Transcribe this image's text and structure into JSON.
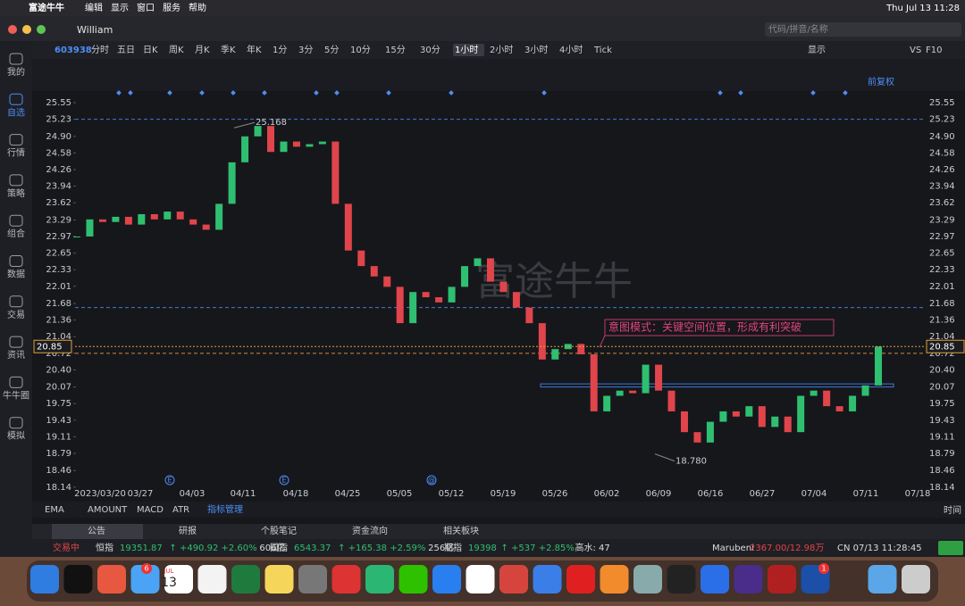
{
  "menubar": {
    "app": "富途牛牛",
    "items": [
      "编辑",
      "显示",
      "窗口",
      "服务",
      "帮助"
    ],
    "clock": "Thu Jul 13  11:28"
  },
  "window": {
    "user": "William",
    "search": "代码/拼音/名称"
  },
  "toolbar": {
    "code": "603938",
    "periods": [
      "分时",
      "五日",
      "日K",
      "周K",
      "月K",
      "季K",
      "年K",
      "1分",
      "3分",
      "5分",
      "10分",
      "15分",
      "30分",
      "1小时",
      "2小时",
      "3小时",
      "4小时",
      "Tick"
    ],
    "selected": 13,
    "right": [
      "显示",
      "VS",
      "F10"
    ],
    "adjust": "前复权"
  },
  "sidebar": [
    "我的",
    "自选",
    "行情",
    "策略",
    "组合",
    "数据",
    "交易",
    "资讯",
    "牛牛圈",
    "模拟"
  ],
  "chart": {
    "watermark": "富途牛牛",
    "yticks": [
      {
        "value": 25.55,
        "label": "25.55"
      },
      {
        "value": 25.23,
        "label": "25.23"
      },
      {
        "value": 24.9,
        "label": "24.90"
      },
      {
        "value": 24.58,
        "label": "24.58"
      },
      {
        "value": 24.26,
        "label": "24.26"
      },
      {
        "value": 23.94,
        "label": "23.94"
      },
      {
        "value": 23.62,
        "label": "23.62"
      },
      {
        "value": 23.29,
        "label": "23.29"
      },
      {
        "value": 22.97,
        "label": "22.97"
      },
      {
        "value": 22.65,
        "label": "22.65"
      },
      {
        "value": 22.33,
        "label": "22.33"
      },
      {
        "value": 22.01,
        "label": "22.01"
      },
      {
        "value": 21.68,
        "label": "21.68"
      },
      {
        "value": 21.36,
        "label": "21.36"
      },
      {
        "value": 21.04,
        "label": "21.04"
      },
      {
        "value": 20.72,
        "label": "20.72"
      },
      {
        "value": 20.4,
        "label": "20.40"
      },
      {
        "value": 20.07,
        "label": "20.07"
      },
      {
        "value": 19.75,
        "label": "19.75"
      },
      {
        "value": 19.43,
        "label": "19.43"
      },
      {
        "value": 19.11,
        "label": "19.11"
      },
      {
        "value": 18.79,
        "label": "18.79"
      },
      {
        "value": 18.46,
        "label": "18.46"
      },
      {
        "value": 18.14,
        "label": "18.14"
      }
    ],
    "dates": [
      "2023/03/20",
      "03/27",
      "04/03",
      "04/11",
      "04/18",
      "04/25",
      "05/05",
      "05/12",
      "05/19",
      "05/26",
      "06/02",
      "06/09",
      "06/16",
      "06/27",
      "07/04",
      "07/11",
      "07/18"
    ],
    "closes": [
      22.97,
      23.3,
      23.25,
      23.35,
      23.2,
      23.4,
      23.3,
      23.45,
      23.3,
      23.2,
      23.1,
      23.6,
      24.4,
      24.9,
      25.1,
      24.6,
      24.8,
      24.7,
      24.75,
      24.8,
      23.6,
      22.7,
      22.4,
      22.2,
      22.0,
      21.3,
      21.9,
      21.8,
      21.7,
      22.0,
      22.4,
      22.55,
      22.1,
      21.9,
      21.6,
      21.3,
      20.6,
      20.8,
      20.9,
      20.7,
      19.6,
      19.9,
      20.0,
      19.95,
      20.5,
      20.0,
      19.6,
      19.2,
      19.0,
      19.4,
      19.6,
      19.5,
      19.7,
      19.3,
      19.5,
      19.2,
      19.9,
      20.0,
      19.7,
      19.6,
      19.9,
      20.1,
      20.85
    ],
    "high": {
      "value": 25.168,
      "label": "25.168"
    },
    "low": {
      "value": 18.78,
      "label": "18.780"
    },
    "last": {
      "value": 20.85,
      "label": "20.85"
    },
    "levels": [
      25.23,
      21.6,
      20.72
    ],
    "box": [
      20.07,
      20.13
    ],
    "note": "意图模式：关键空间位置，形成有利突破",
    "events": [
      "E",
      "E",
      "@"
    ],
    "axis_name": "时间"
  },
  "indicators": [
    "EMA",
    "AMOUNT",
    "MACD",
    "ATR",
    "指标管理"
  ],
  "tabs": [
    "公告",
    "研报",
    "个股笔记",
    "资金流向",
    "相关板块"
  ],
  "status": {
    "state": "交易中",
    "hsi": [
      "恒指",
      "19351.87",
      "↑ +490.92 +2.60%",
      "606亿"
    ],
    "hscei": [
      "国指",
      "6543.37",
      "↑ +165.38 +2.59%",
      "256亿"
    ],
    "fut": [
      "期指",
      "19398",
      "↑ +537 +2.85%",
      "高水: 47"
    ],
    "stock": [
      "Marubeni",
      "2367.00/12.98万"
    ],
    "time": "CN 07/13 11:28:45"
  },
  "dock": {
    "calendar": [
      "JUL",
      "13"
    ],
    "badges": [
      "6",
      "1"
    ]
  }
}
